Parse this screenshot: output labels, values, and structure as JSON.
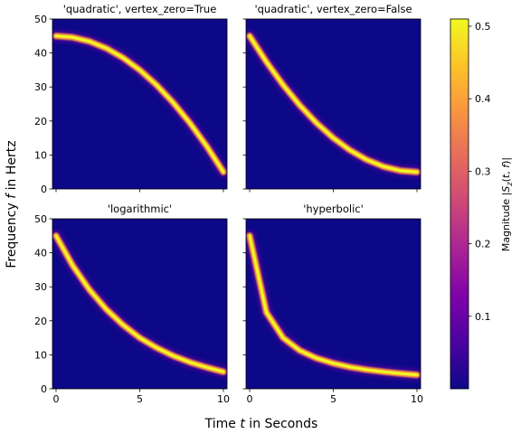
{
  "chart_data": {
    "type": "heatmap",
    "xlabel": "Time t in Seconds",
    "ylabel": "Frequency f in Hertz",
    "xlim": [
      0,
      10
    ],
    "ylim": [
      0,
      50
    ],
    "xticks": [
      0,
      5,
      10
    ],
    "yticks": [
      0,
      10,
      20,
      30,
      40,
      50
    ],
    "colorbar": {
      "label": "Magnitude |S_z(t, f)|",
      "range": [
        0.0,
        0.51
      ],
      "ticks": [
        0.1,
        0.2,
        0.3,
        0.4,
        0.5
      ],
      "colormap": "plasma"
    },
    "panels": [
      {
        "title": "'quadratic', vertex_zero=True",
        "method": "quadratic-vertex-zero",
        "series": [
          {
            "x": [
              0,
              1,
              2,
              3,
              4,
              5,
              6,
              7,
              8,
              9,
              10
            ],
            "y": [
              45,
              44.6,
              43.4,
              41.4,
              38.6,
              35,
              30.6,
              25.4,
              19.4,
              12.6,
              5
            ]
          }
        ]
      },
      {
        "title": "'quadratic', vertex_zero=False",
        "method": "quadratic-vertex-end",
        "series": [
          {
            "x": [
              0,
              1,
              2,
              3,
              4,
              5,
              6,
              7,
              8,
              9,
              10
            ],
            "y": [
              45,
              37.4,
              30.6,
              24.6,
              19.4,
              15,
              11.4,
              8.6,
              6.6,
              5.4,
              5
            ]
          }
        ]
      },
      {
        "title": "'logarithmic'",
        "method": "logarithmic",
        "series": [
          {
            "x": [
              0,
              1,
              2,
              3,
              4,
              5,
              6,
              7,
              8,
              9,
              10
            ],
            "y": [
              45,
              36.2,
              29.1,
              23.4,
              18.8,
              15,
              12.1,
              9.7,
              7.8,
              6.3,
              5
            ]
          }
        ]
      },
      {
        "title": "'hyperbolic'",
        "method": "hyperbolic",
        "series": [
          {
            "x": [
              0,
              1,
              2,
              3,
              4,
              5,
              6,
              7,
              8,
              9,
              10
            ],
            "y": [
              45,
              22.5,
              15,
              11.25,
              9,
              7.5,
              6.4,
              5.6,
              5,
              4.5,
              4.1
            ]
          }
        ]
      }
    ],
    "colors": {
      "background": "#0d0887",
      "ridge_core": "#f0f921",
      "ridge_edge": "#f89540"
    }
  }
}
